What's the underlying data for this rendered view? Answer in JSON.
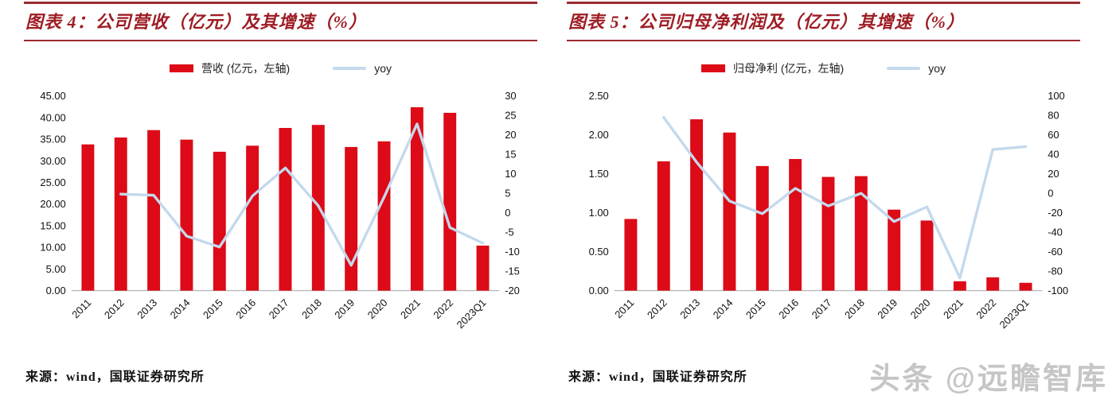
{
  "watermark": "头条 @远瞻智库",
  "charts": [
    {
      "title": "图表 4：公司营收（亿元）及其增速（%）",
      "source": "来源：wind，国联证券研究所",
      "legend": {
        "bar": "营收 (亿元，左轴)",
        "line": "yoy"
      },
      "chart_data": {
        "type": "bar+line",
        "categories": [
          "2011",
          "2012",
          "2013",
          "2014",
          "2015",
          "2016",
          "2017",
          "2018",
          "2019",
          "2020",
          "2021",
          "2022",
          "2023Q1"
        ],
        "series": [
          {
            "name": "营收 (亿元，左轴)",
            "type": "bar",
            "axis": "left",
            "values": [
              33.8,
              35.4,
              37.1,
              34.9,
              32.1,
              33.5,
              37.6,
              38.3,
              33.2,
              34.5,
              42.4,
              41.1,
              10.4
            ]
          },
          {
            "name": "yoy",
            "type": "line",
            "axis": "right",
            "values": [
              null,
              4.8,
              4.5,
              -6.0,
              -8.8,
              4.3,
              11.5,
              1.8,
              -13.5,
              4.0,
              22.8,
              -3.8,
              -7.8
            ]
          }
        ],
        "left_axis": {
          "min": 0,
          "max": 45,
          "step": 5,
          "decimals": 2
        },
        "right_axis": {
          "min": -20,
          "max": 30,
          "step": 5,
          "decimals": 0
        },
        "colors": {
          "bar": "#dd0a17",
          "line": "#c3d9ec"
        }
      }
    },
    {
      "title": "图表 5：公司归母净利润及（亿元）其增速（%）",
      "source": "来源：wind，国联证券研究所",
      "legend": {
        "bar": "归母净利 (亿元，左轴)",
        "line": "yoy"
      },
      "chart_data": {
        "type": "bar+line",
        "categories": [
          "2011",
          "2012",
          "2013",
          "2014",
          "2015",
          "2016",
          "2017",
          "2018",
          "2019",
          "2020",
          "2021",
          "2022",
          "2023Q1"
        ],
        "series": [
          {
            "name": "归母净利 (亿元，左轴)",
            "type": "bar",
            "axis": "left",
            "values": [
              0.92,
              1.66,
              2.2,
              2.03,
              1.6,
              1.69,
              1.46,
              1.47,
              1.04,
              0.9,
              0.12,
              0.17,
              0.1
            ]
          },
          {
            "name": "yoy",
            "type": "line",
            "axis": "right",
            "values": [
              null,
              78,
              32,
              -8,
              -21,
              5,
              -13,
              0,
              -29,
              -14,
              -87,
              45,
              48
            ]
          }
        ],
        "left_axis": {
          "min": 0,
          "max": 2.5,
          "step": 0.5,
          "decimals": 2
        },
        "right_axis": {
          "min": -100,
          "max": 100,
          "step": 20,
          "decimals": 0
        },
        "colors": {
          "bar": "#dd0a17",
          "line": "#c3d9ec"
        }
      }
    }
  ]
}
